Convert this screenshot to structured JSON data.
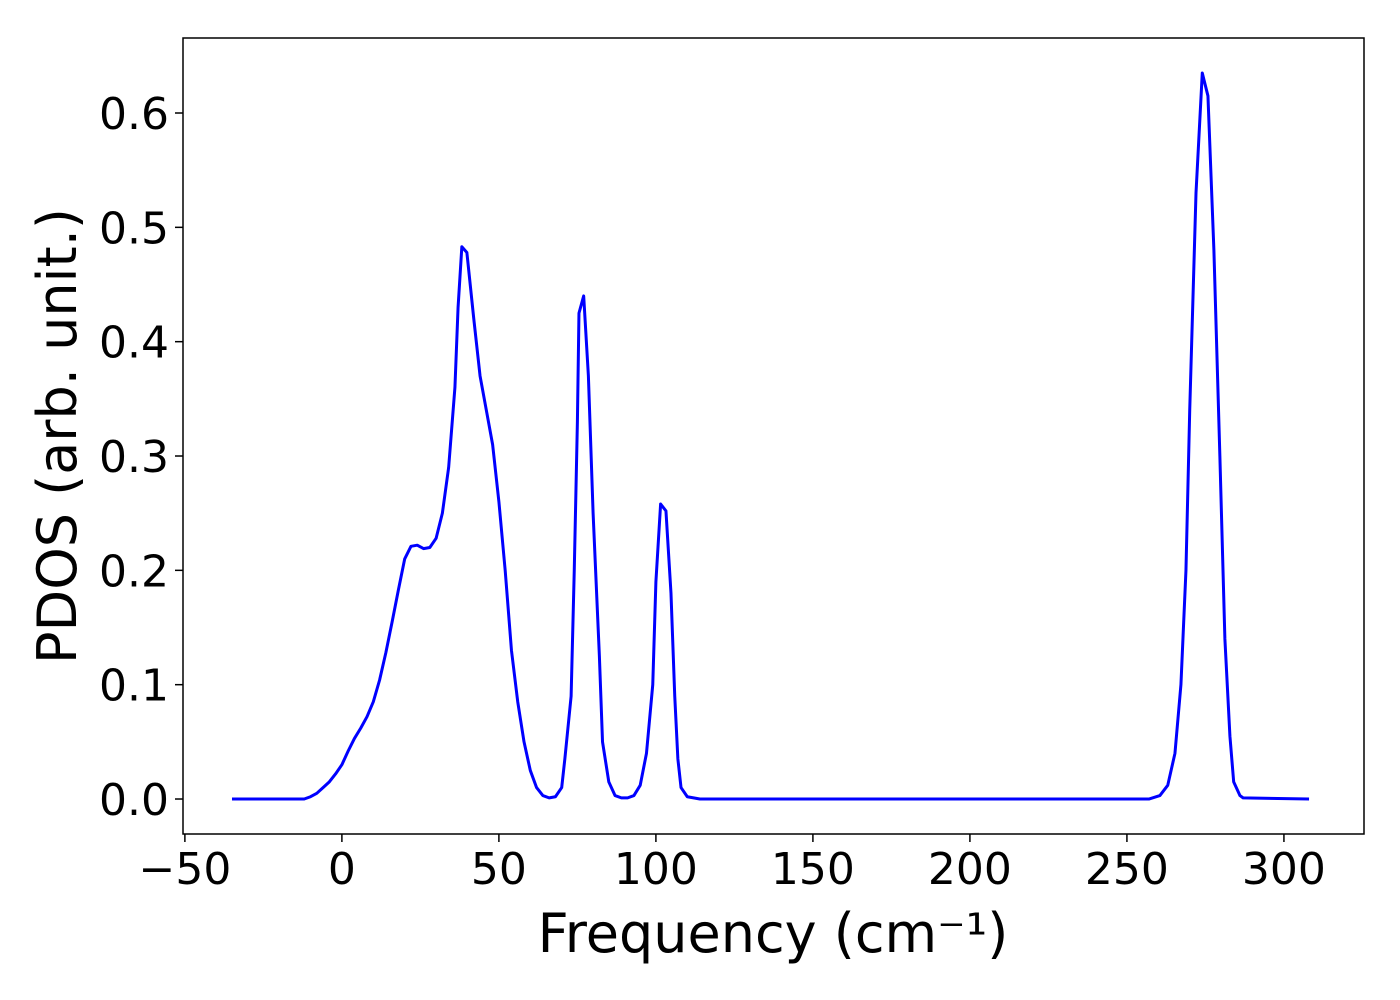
{
  "chart_data": {
    "type": "line",
    "xlabel": "Frequency (cm⁻¹)",
    "ylabel": "PDOS (arb. unit.)",
    "series": [
      {
        "color": "#0000ff",
        "x": [
          -35,
          -12,
          -10,
          -8,
          -6,
          -4,
          -2,
          0,
          2,
          4,
          6,
          8,
          10,
          12,
          14,
          16,
          18,
          20,
          22,
          24,
          26,
          28,
          30,
          32,
          34,
          36,
          37,
          38.2,
          39.8,
          42,
          44,
          46,
          48,
          50,
          52,
          54,
          56,
          58,
          60,
          62,
          64,
          66,
          68,
          70,
          71,
          73,
          74,
          75,
          75.5,
          77,
          78.5,
          80,
          82,
          83,
          85,
          87,
          89,
          91,
          93,
          95,
          97,
          99,
          100,
          101.5,
          103.2,
          104.8,
          106,
          107,
          108,
          110,
          112,
          114,
          257,
          260.5,
          263,
          265.3,
          267.2,
          268.8,
          270,
          272,
          274,
          275.8,
          277.7,
          279.6,
          281.2,
          282.8,
          284,
          286,
          287,
          308
        ],
        "values": [
          0,
          0,
          0.002,
          0.005,
          0.01,
          0.015,
          0.022,
          0.03,
          0.042,
          0.053,
          0.062,
          0.072,
          0.085,
          0.104,
          0.128,
          0.155,
          0.183,
          0.21,
          0.221,
          0.222,
          0.219,
          0.22,
          0.228,
          0.25,
          0.29,
          0.36,
          0.43,
          0.483,
          0.478,
          0.42,
          0.37,
          0.34,
          0.31,
          0.26,
          0.2,
          0.13,
          0.085,
          0.05,
          0.025,
          0.01,
          0.003,
          0.001,
          0.002,
          0.01,
          0.035,
          0.09,
          0.2,
          0.33,
          0.425,
          0.44,
          0.37,
          0.25,
          0.125,
          0.05,
          0.015,
          0.003,
          0.001,
          0.001,
          0.003,
          0.012,
          0.04,
          0.1,
          0.19,
          0.258,
          0.252,
          0.18,
          0.09,
          0.035,
          0.01,
          0.002,
          0.001,
          0,
          0,
          0.003,
          0.012,
          0.04,
          0.1,
          0.2,
          0.34,
          0.53,
          0.635,
          0.615,
          0.48,
          0.3,
          0.14,
          0.055,
          0.015,
          0.003,
          0.001,
          0
        ]
      }
    ],
    "xlim": [
      -50.6,
      325.5
    ],
    "ylim": [
      -0.0306,
      0.6656
    ],
    "xticks": [
      {
        "value": -50,
        "label": "−50"
      },
      0,
      50,
      100,
      150,
      200,
      250,
      300
    ],
    "yticks": [
      {
        "value": 0,
        "label": "0.0"
      },
      0.1,
      0.2,
      0.3,
      0.4,
      0.5,
      0.6
    ],
    "grid": false
  }
}
